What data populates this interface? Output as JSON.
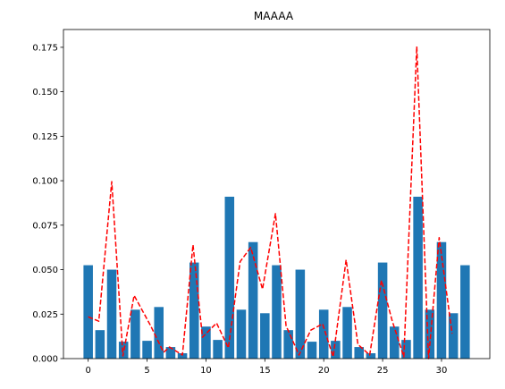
{
  "chart_data": {
    "type": "bar",
    "title": "MAAAA",
    "xlabel": "",
    "ylabel": "",
    "xlim": [
      -2.1,
      34.1
    ],
    "ylim": [
      0,
      0.185
    ],
    "grid": false,
    "legend": "none",
    "x_ticks": [
      0,
      5,
      10,
      15,
      20,
      25,
      30
    ],
    "x_tick_labels": [
      "0",
      "5",
      "10",
      "15",
      "20",
      "25",
      "30"
    ],
    "y_ticks": [
      0,
      0.025,
      0.05,
      0.075,
      0.1,
      0.125,
      0.15,
      0.175
    ],
    "y_tick_labels": [
      "0.000",
      "0.025",
      "0.050",
      "0.075",
      "0.100",
      "0.125",
      "0.150",
      "0.175"
    ],
    "x": [
      0,
      1,
      2,
      3,
      4,
      5,
      6,
      7,
      8,
      9,
      10,
      11,
      12,
      13,
      14,
      15,
      16,
      17,
      18,
      19,
      20,
      21,
      22,
      23,
      24,
      25,
      26,
      27,
      28,
      29,
      30,
      31,
      32
    ],
    "series": [
      {
        "kind": "bar",
        "color": "#1f77b4",
        "values": [
          0.0525,
          0.016,
          0.05,
          0.0095,
          0.0275,
          0.01,
          0.029,
          0.0065,
          0.003,
          0.054,
          0.018,
          0.0105,
          0.091,
          0.0275,
          0.0655,
          0.0255,
          0.0525,
          0.016,
          0.05,
          0.0095,
          0.0275,
          0.01,
          0.029,
          0.0065,
          0.003,
          0.054,
          0.018,
          0.0105,
          0.091,
          0.0275,
          0.0655,
          0.0255,
          0.0525
        ]
      },
      {
        "kind": "line",
        "style": "dashed",
        "color": "#ff0000",
        "x": [
          0,
          0.9,
          2,
          2.95,
          3.9,
          5.3,
          6.4,
          6.9,
          8,
          8.9,
          9.7,
          10.9,
          11.9,
          12.9,
          13.8,
          14.8,
          15.9,
          16.8,
          17.9,
          18.9,
          19.9,
          20.8,
          21.9,
          22.9,
          23.9,
          24.9,
          25.8,
          26.8,
          27.9,
          28.9,
          29.8,
          30.9
        ],
        "y": [
          0.0235,
          0.021,
          0.0995,
          0.0015,
          0.0355,
          0.0185,
          0.0035,
          0.0065,
          0.002,
          0.064,
          0.012,
          0.02,
          0.006,
          0.0545,
          0.0625,
          0.039,
          0.0815,
          0.0185,
          0.002,
          0.016,
          0.0195,
          0.001,
          0.0555,
          0.008,
          0.002,
          0.044,
          0.0215,
          0.001,
          0.1755,
          0.0,
          0.068,
          0.014
        ]
      }
    ]
  }
}
